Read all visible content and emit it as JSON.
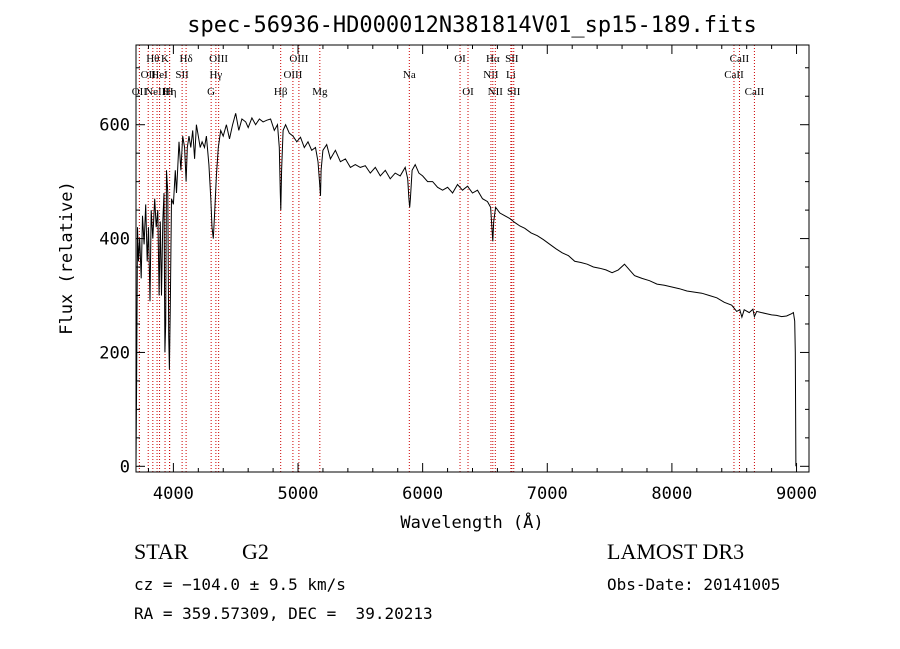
{
  "chart_data": {
    "type": "line",
    "title": "spec-56936-HD000012N381814V01_sp15-189.fits",
    "xlabel": "Wavelength (Å)",
    "ylabel": "Flux (relative)",
    "xlim": [
      3700,
      9100
    ],
    "ylim": [
      -10,
      740
    ],
    "xticks": [
      4000,
      5000,
      6000,
      7000,
      8000,
      9000
    ],
    "yticks": [
      0,
      200,
      400,
      600
    ],
    "series": [
      {
        "name": "flux",
        "points": [
          [
            3700,
            0
          ],
          [
            3705,
            140
          ],
          [
            3712,
            420
          ],
          [
            3720,
            360
          ],
          [
            3730,
            400
          ],
          [
            3742,
            330
          ],
          [
            3752,
            440
          ],
          [
            3765,
            390
          ],
          [
            3778,
            460
          ],
          [
            3790,
            360
          ],
          [
            3800,
            420
          ],
          [
            3812,
            290
          ],
          [
            3822,
            450
          ],
          [
            3835,
            400
          ],
          [
            3850,
            470
          ],
          [
            3862,
            420
          ],
          [
            3875,
            450
          ],
          [
            3885,
            300
          ],
          [
            3895,
            430
          ],
          [
            3905,
            300
          ],
          [
            3915,
            430
          ],
          [
            3925,
            480
          ],
          [
            3932,
            200
          ],
          [
            3938,
            250
          ],
          [
            3945,
            520
          ],
          [
            3955,
            480
          ],
          [
            3962,
            230
          ],
          [
            3968,
            170
          ],
          [
            3975,
            280
          ],
          [
            3985,
            470
          ],
          [
            4000,
            460
          ],
          [
            4015,
            520
          ],
          [
            4025,
            480
          ],
          [
            4045,
            570
          ],
          [
            4060,
            520
          ],
          [
            4075,
            580
          ],
          [
            4090,
            560
          ],
          [
            4102,
            500
          ],
          [
            4112,
            560
          ],
          [
            4125,
            580
          ],
          [
            4140,
            560
          ],
          [
            4155,
            590
          ],
          [
            4170,
            540
          ],
          [
            4185,
            600
          ],
          [
            4200,
            580
          ],
          [
            4215,
            560
          ],
          [
            4230,
            570
          ],
          [
            4250,
            560
          ],
          [
            4265,
            580
          ],
          [
            4285,
            530
          ],
          [
            4300,
            470
          ],
          [
            4310,
            420
          ],
          [
            4320,
            400
          ],
          [
            4330,
            440
          ],
          [
            4345,
            510
          ],
          [
            4360,
            560
          ],
          [
            4380,
            590
          ],
          [
            4400,
            580
          ],
          [
            4425,
            600
          ],
          [
            4450,
            575
          ],
          [
            4475,
            600
          ],
          [
            4500,
            620
          ],
          [
            4525,
            590
          ],
          [
            4550,
            610
          ],
          [
            4580,
            605
          ],
          [
            4600,
            595
          ],
          [
            4630,
            612
          ],
          [
            4660,
            600
          ],
          [
            4690,
            610
          ],
          [
            4720,
            605
          ],
          [
            4750,
            608
          ],
          [
            4780,
            610
          ],
          [
            4810,
            590
          ],
          [
            4835,
            600
          ],
          [
            4850,
            560
          ],
          [
            4858,
            480
          ],
          [
            4862,
            450
          ],
          [
            4868,
            520
          ],
          [
            4880,
            590
          ],
          [
            4900,
            600
          ],
          [
            4930,
            585
          ],
          [
            4960,
            580
          ],
          [
            4990,
            570
          ],
          [
            5020,
            578
          ],
          [
            5050,
            560
          ],
          [
            5080,
            570
          ],
          [
            5110,
            555
          ],
          [
            5140,
            560
          ],
          [
            5160,
            535
          ],
          [
            5172,
            500
          ],
          [
            5180,
            475
          ],
          [
            5185,
            520
          ],
          [
            5200,
            555
          ],
          [
            5230,
            565
          ],
          [
            5260,
            540
          ],
          [
            5300,
            555
          ],
          [
            5340,
            535
          ],
          [
            5380,
            540
          ],
          [
            5420,
            525
          ],
          [
            5460,
            530
          ],
          [
            5500,
            525
          ],
          [
            5540,
            528
          ],
          [
            5580,
            515
          ],
          [
            5620,
            525
          ],
          [
            5660,
            510
          ],
          [
            5700,
            520
          ],
          [
            5740,
            505
          ],
          [
            5780,
            515
          ],
          [
            5820,
            510
          ],
          [
            5860,
            525
          ],
          [
            5880,
            505
          ],
          [
            5890,
            470
          ],
          [
            5896,
            455
          ],
          [
            5902,
            470
          ],
          [
            5915,
            520
          ],
          [
            5940,
            530
          ],
          [
            5970,
            515
          ],
          [
            6000,
            510
          ],
          [
            6040,
            500
          ],
          [
            6080,
            500
          ],
          [
            6120,
            490
          ],
          [
            6160,
            485
          ],
          [
            6200,
            490
          ],
          [
            6240,
            480
          ],
          [
            6280,
            495
          ],
          [
            6320,
            485
          ],
          [
            6360,
            492
          ],
          [
            6400,
            480
          ],
          [
            6440,
            485
          ],
          [
            6480,
            470
          ],
          [
            6520,
            465
          ],
          [
            6545,
            455
          ],
          [
            6556,
            420
          ],
          [
            6563,
            395
          ],
          [
            6570,
            430
          ],
          [
            6585,
            455
          ],
          [
            6620,
            445
          ],
          [
            6660,
            440
          ],
          [
            6700,
            435
          ],
          [
            6740,
            428
          ],
          [
            6780,
            422
          ],
          [
            6820,
            418
          ],
          [
            6870,
            410
          ],
          [
            6920,
            405
          ],
          [
            6970,
            398
          ],
          [
            7020,
            390
          ],
          [
            7070,
            382
          ],
          [
            7120,
            375
          ],
          [
            7170,
            370
          ],
          [
            7220,
            360
          ],
          [
            7270,
            358
          ],
          [
            7320,
            355
          ],
          [
            7370,
            350
          ],
          [
            7420,
            348
          ],
          [
            7470,
            345
          ],
          [
            7520,
            340
          ],
          [
            7570,
            345
          ],
          [
            7620,
            355
          ],
          [
            7660,
            345
          ],
          [
            7700,
            335
          ],
          [
            7760,
            330
          ],
          [
            7820,
            326
          ],
          [
            7880,
            320
          ],
          [
            7940,
            318
          ],
          [
            8000,
            315
          ],
          [
            8060,
            312
          ],
          [
            8120,
            308
          ],
          [
            8180,
            306
          ],
          [
            8240,
            304
          ],
          [
            8300,
            300
          ],
          [
            8360,
            296
          ],
          [
            8420,
            288
          ],
          [
            8480,
            283
          ],
          [
            8520,
            272
          ],
          [
            8545,
            275
          ],
          [
            8562,
            262
          ],
          [
            8580,
            275
          ],
          [
            8620,
            270
          ],
          [
            8650,
            276
          ],
          [
            8662,
            263
          ],
          [
            8680,
            272
          ],
          [
            8720,
            270
          ],
          [
            8760,
            268
          ],
          [
            8800,
            266
          ],
          [
            8840,
            265
          ],
          [
            8880,
            263
          ],
          [
            8920,
            264
          ],
          [
            8960,
            268
          ],
          [
            8975,
            270
          ],
          [
            8985,
            255
          ],
          [
            8990,
            200
          ],
          [
            8995,
            0
          ]
        ]
      }
    ],
    "lines": [
      {
        "w": 3727,
        "label": "OII",
        "row": 2
      },
      {
        "w": 3798,
        "label": "OII",
        "row": 1
      },
      {
        "w": 3835,
        "label": "Hθ",
        "row": 0
      },
      {
        "w": 3869,
        "label": "NeIII",
        "row": 2
      },
      {
        "w": 3889,
        "label": "HeI",
        "row": 1
      },
      {
        "w": 3933,
        "label": "K",
        "row": 0
      },
      {
        "w": 3970,
        "label": "Hη",
        "row": 2
      },
      {
        "w": 3969,
        "label": "H",
        "row": 2
      },
      {
        "w": 4070,
        "label": "SII",
        "row": 1
      },
      {
        "w": 4102,
        "label": "Hδ",
        "row": 0
      },
      {
        "w": 4303,
        "label": "G",
        "row": 2
      },
      {
        "w": 4341,
        "label": "Hγ",
        "row": 1
      },
      {
        "w": 4363,
        "label": "OIII",
        "row": 0
      },
      {
        "w": 4861,
        "label": "Hβ",
        "row": 2
      },
      {
        "w": 4959,
        "label": "OIII",
        "row": 1
      },
      {
        "w": 5007,
        "label": "OIII",
        "row": 0
      },
      {
        "w": 5175,
        "label": "Mg",
        "row": 2
      },
      {
        "w": 5893,
        "label": "Na",
        "row": 1
      },
      {
        "w": 6300,
        "label": "OI",
        "row": 0
      },
      {
        "w": 6364,
        "label": "OI",
        "row": 2
      },
      {
        "w": 6548,
        "label": "NII",
        "row": 1
      },
      {
        "w": 6563,
        "label": "Hα",
        "row": 0
      },
      {
        "w": 6583,
        "label": "NII",
        "row": 2
      },
      {
        "w": 6708,
        "label": "Li",
        "row": 1
      },
      {
        "w": 6716,
        "label": "SII",
        "row": 0
      },
      {
        "w": 6731,
        "label": "SII",
        "row": 2
      },
      {
        "w": 8498,
        "label": "CaII",
        "row": 1
      },
      {
        "w": 8542,
        "label": "CaII",
        "row": 0
      },
      {
        "w": 8662,
        "label": "CaII",
        "row": 2
      }
    ]
  },
  "info": {
    "class": "STAR",
    "subclass": "G2",
    "survey": "LAMOST DR3",
    "cz": "cz = −104.0 ± 9.5 km/s",
    "obs_date": "Obs-Date: 20141005",
    "coords": "RA = 359.57309, DEC =  39.20213"
  }
}
